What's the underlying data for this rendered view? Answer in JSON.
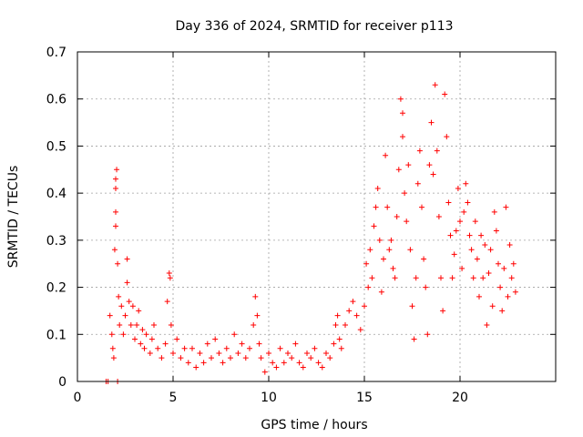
{
  "chart_data": {
    "type": "scatter",
    "title": "Day 336 of 2024, SRMTID for receiver p113",
    "xlabel": "GPS time / hours",
    "ylabel": "SRMTID / TECUs",
    "xlim": [
      0,
      25
    ],
    "ylim": [
      0,
      0.7
    ],
    "xticks": [
      0,
      5,
      10,
      15,
      20
    ],
    "xtick_labels": [
      "0",
      "5",
      "10",
      "15",
      "20"
    ],
    "yticks": [
      0,
      0.1,
      0.2,
      0.3,
      0.4,
      0.5,
      0.6,
      0.7
    ],
    "ytick_labels": [
      "0",
      "0.1",
      "0.2",
      "0.3",
      "0.4",
      "0.5",
      "0.6",
      "0.7"
    ],
    "grid": true,
    "marker": "plus",
    "color": "#ff0000",
    "series": [
      {
        "name": "SRMTID",
        "points": [
          [
            1.5,
            0.0
          ],
          [
            1.6,
            0.0
          ],
          [
            2.1,
            0.0
          ],
          [
            1.7,
            0.14
          ],
          [
            1.8,
            0.1
          ],
          [
            1.85,
            0.07
          ],
          [
            1.9,
            0.05
          ],
          [
            1.95,
            0.28
          ],
          [
            2.0,
            0.33
          ],
          [
            2.0,
            0.36
          ],
          [
            2.0,
            0.41
          ],
          [
            2.05,
            0.45
          ],
          [
            2.0,
            0.43
          ],
          [
            2.1,
            0.25
          ],
          [
            2.15,
            0.18
          ],
          [
            2.2,
            0.12
          ],
          [
            2.3,
            0.16
          ],
          [
            2.4,
            0.1
          ],
          [
            2.5,
            0.14
          ],
          [
            2.6,
            0.21
          ],
          [
            2.6,
            0.26
          ],
          [
            2.7,
            0.17
          ],
          [
            2.8,
            0.12
          ],
          [
            2.9,
            0.16
          ],
          [
            3.0,
            0.09
          ],
          [
            3.1,
            0.12
          ],
          [
            3.2,
            0.15
          ],
          [
            3.3,
            0.08
          ],
          [
            3.4,
            0.11
          ],
          [
            3.5,
            0.07
          ],
          [
            3.6,
            0.1
          ],
          [
            3.8,
            0.06
          ],
          [
            3.9,
            0.09
          ],
          [
            4.0,
            0.12
          ],
          [
            4.2,
            0.07
          ],
          [
            4.4,
            0.05
          ],
          [
            4.6,
            0.08
          ],
          [
            4.7,
            0.17
          ],
          [
            4.8,
            0.23
          ],
          [
            4.85,
            0.22
          ],
          [
            4.9,
            0.12
          ],
          [
            5.0,
            0.06
          ],
          [
            5.2,
            0.09
          ],
          [
            5.4,
            0.05
          ],
          [
            5.6,
            0.07
          ],
          [
            5.8,
            0.04
          ],
          [
            6.0,
            0.07
          ],
          [
            6.2,
            0.03
          ],
          [
            6.4,
            0.06
          ],
          [
            6.6,
            0.04
          ],
          [
            6.8,
            0.08
          ],
          [
            7.0,
            0.05
          ],
          [
            7.2,
            0.09
          ],
          [
            7.4,
            0.06
          ],
          [
            7.6,
            0.04
          ],
          [
            7.8,
            0.07
          ],
          [
            8.0,
            0.05
          ],
          [
            8.2,
            0.1
          ],
          [
            8.4,
            0.06
          ],
          [
            8.6,
            0.08
          ],
          [
            8.8,
            0.05
          ],
          [
            9.0,
            0.07
          ],
          [
            9.2,
            0.12
          ],
          [
            9.3,
            0.18
          ],
          [
            9.4,
            0.14
          ],
          [
            9.5,
            0.08
          ],
          [
            9.6,
            0.05
          ],
          [
            9.8,
            0.02
          ],
          [
            10.0,
            0.06
          ],
          [
            10.2,
            0.04
          ],
          [
            10.4,
            0.03
          ],
          [
            10.6,
            0.07
          ],
          [
            10.8,
            0.04
          ],
          [
            11.0,
            0.06
          ],
          [
            11.2,
            0.05
          ],
          [
            11.4,
            0.08
          ],
          [
            11.6,
            0.04
          ],
          [
            11.8,
            0.03
          ],
          [
            12.0,
            0.06
          ],
          [
            12.2,
            0.05
          ],
          [
            12.4,
            0.07
          ],
          [
            12.6,
            0.04
          ],
          [
            12.8,
            0.03
          ],
          [
            13.0,
            0.06
          ],
          [
            13.2,
            0.05
          ],
          [
            13.4,
            0.08
          ],
          [
            13.5,
            0.12
          ],
          [
            13.6,
            0.14
          ],
          [
            13.7,
            0.09
          ],
          [
            13.8,
            0.07
          ],
          [
            14.0,
            0.12
          ],
          [
            14.2,
            0.15
          ],
          [
            14.4,
            0.17
          ],
          [
            14.6,
            0.14
          ],
          [
            14.8,
            0.11
          ],
          [
            15.0,
            0.16
          ],
          [
            15.1,
            0.25
          ],
          [
            15.2,
            0.2
          ],
          [
            15.3,
            0.28
          ],
          [
            15.4,
            0.22
          ],
          [
            15.5,
            0.33
          ],
          [
            15.6,
            0.37
          ],
          [
            15.7,
            0.41
          ],
          [
            15.8,
            0.3
          ],
          [
            15.9,
            0.19
          ],
          [
            16.0,
            0.26
          ],
          [
            16.1,
            0.48
          ],
          [
            16.2,
            0.37
          ],
          [
            16.3,
            0.28
          ],
          [
            16.4,
            0.3
          ],
          [
            16.5,
            0.24
          ],
          [
            16.6,
            0.22
          ],
          [
            16.7,
            0.35
          ],
          [
            16.8,
            0.45
          ],
          [
            16.9,
            0.6
          ],
          [
            17.0,
            0.57
          ],
          [
            17.0,
            0.52
          ],
          [
            17.1,
            0.4
          ],
          [
            17.2,
            0.34
          ],
          [
            17.3,
            0.46
          ],
          [
            17.4,
            0.28
          ],
          [
            17.5,
            0.16
          ],
          [
            17.6,
            0.09
          ],
          [
            17.7,
            0.22
          ],
          [
            17.8,
            0.42
          ],
          [
            17.9,
            0.49
          ],
          [
            18.0,
            0.37
          ],
          [
            18.1,
            0.26
          ],
          [
            18.2,
            0.2
          ],
          [
            18.3,
            0.1
          ],
          [
            18.4,
            0.46
          ],
          [
            18.5,
            0.55
          ],
          [
            18.6,
            0.44
          ],
          [
            18.7,
            0.63
          ],
          [
            18.8,
            0.49
          ],
          [
            18.9,
            0.35
          ],
          [
            19.0,
            0.22
          ],
          [
            19.1,
            0.15
          ],
          [
            19.2,
            0.61
          ],
          [
            19.3,
            0.52
          ],
          [
            19.4,
            0.38
          ],
          [
            19.5,
            0.31
          ],
          [
            19.6,
            0.22
          ],
          [
            19.7,
            0.27
          ],
          [
            19.8,
            0.32
          ],
          [
            19.9,
            0.41
          ],
          [
            20.0,
            0.34
          ],
          [
            20.1,
            0.24
          ],
          [
            20.2,
            0.36
          ],
          [
            20.3,
            0.42
          ],
          [
            20.4,
            0.38
          ],
          [
            20.5,
            0.31
          ],
          [
            20.6,
            0.28
          ],
          [
            20.7,
            0.22
          ],
          [
            20.8,
            0.34
          ],
          [
            20.9,
            0.26
          ],
          [
            21.0,
            0.18
          ],
          [
            21.1,
            0.31
          ],
          [
            21.2,
            0.22
          ],
          [
            21.3,
            0.29
          ],
          [
            21.4,
            0.12
          ],
          [
            21.5,
            0.23
          ],
          [
            21.6,
            0.28
          ],
          [
            21.7,
            0.16
          ],
          [
            21.8,
            0.36
          ],
          [
            21.9,
            0.32
          ],
          [
            22.0,
            0.25
          ],
          [
            22.1,
            0.2
          ],
          [
            22.2,
            0.15
          ],
          [
            22.3,
            0.24
          ],
          [
            22.4,
            0.37
          ],
          [
            22.5,
            0.18
          ],
          [
            22.6,
            0.29
          ],
          [
            22.7,
            0.22
          ],
          [
            22.8,
            0.25
          ],
          [
            22.9,
            0.19
          ]
        ]
      }
    ]
  }
}
